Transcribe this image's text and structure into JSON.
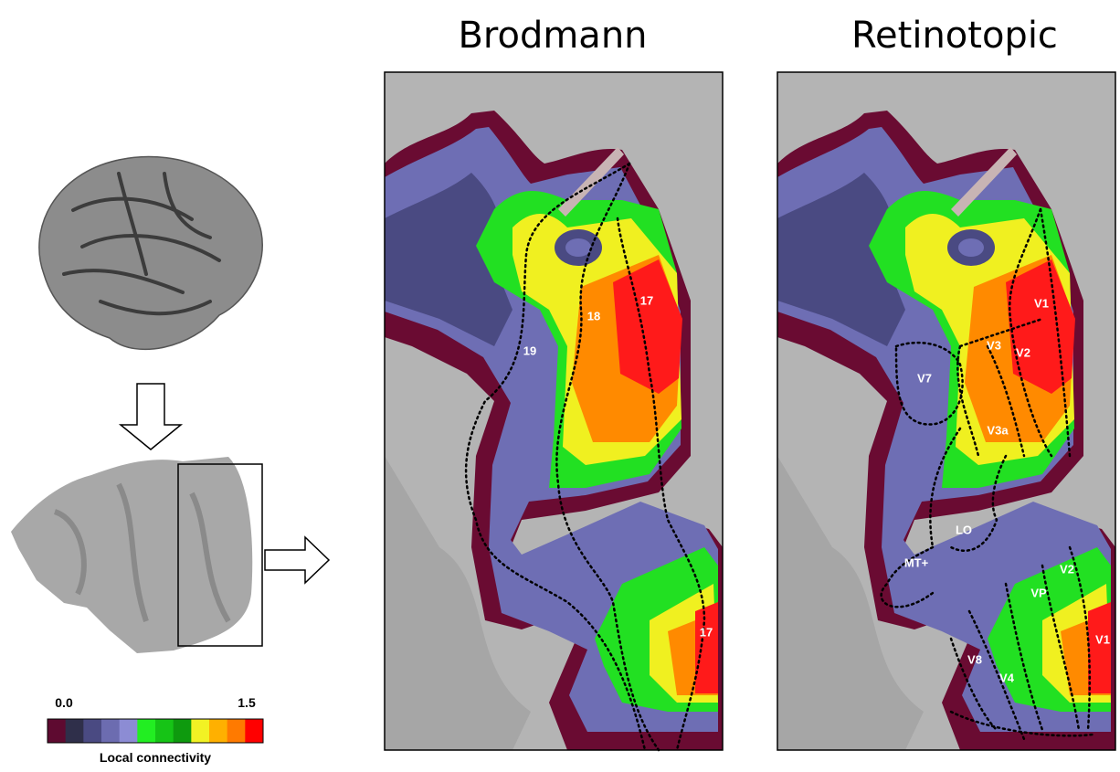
{
  "titles": [
    "Brodmann",
    "Retinotopic"
  ],
  "colorbar": {
    "lim": [
      0,
      1.5
    ],
    "ticks": [
      {
        "value": 0,
        "label": "0.0"
      },
      {
        "value": 1.5,
        "label": "1.5"
      }
    ],
    "label": "Local connectivity",
    "colors": [
      "#5e0a30",
      "#2f2f4a",
      "#4a4a82",
      "#6c6cb0",
      "#8c8cd4",
      "#22ee22",
      "#16c416",
      "#0e9a0e",
      "#f2f224",
      "#ffb000",
      "#ff7a00",
      "#ff0000"
    ]
  },
  "brodmann_labels": [
    "19",
    "18",
    "17",
    "17"
  ],
  "retinotopic_labels": [
    "V1",
    "V3",
    "V2",
    "V7",
    "V3a",
    "LO",
    "MT+",
    "V2",
    "VP",
    "V1",
    "V8",
    "V4"
  ]
}
